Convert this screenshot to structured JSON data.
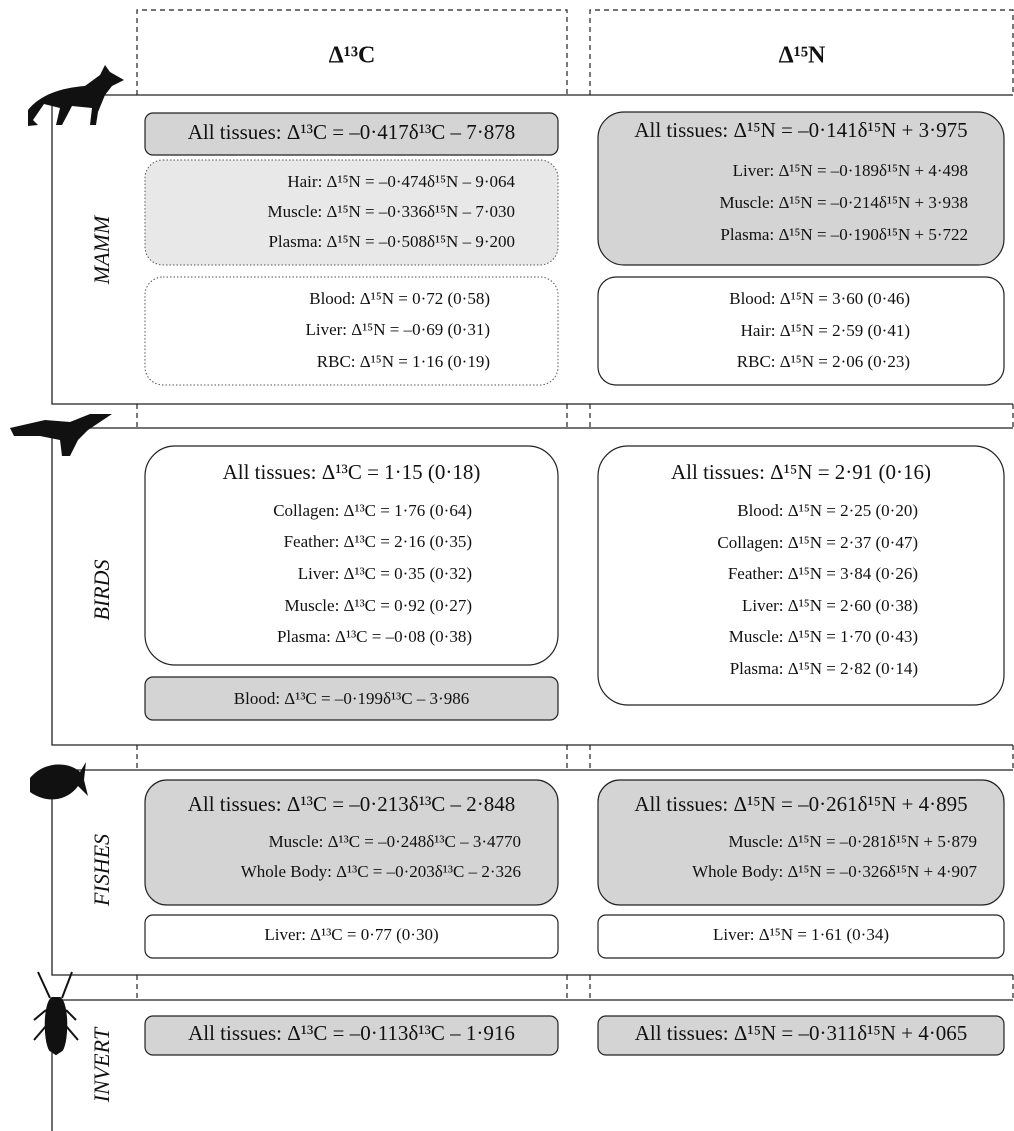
{
  "header": {
    "carbon": "Δ¹³C",
    "nitrogen": "Δ¹⁵N"
  },
  "groups": [
    {
      "label": "MAMM",
      "carbon": [
        {
          "lines": [
            "All tissues: Δ¹³C = –0·417δ¹³C – 7·878"
          ]
        },
        {
          "lines": [
            "Hair: Δ¹⁵N = –0·474δ¹⁵N – 9·064",
            "Muscle: Δ¹⁵N = –0·336δ¹⁵N – 7·030",
            "Plasma: Δ¹⁵N = –0·508δ¹⁵N – 9·200"
          ]
        },
        {
          "lines": [
            "Blood: Δ¹⁵N = 0·72 (0·58)",
            "Liver: Δ¹⁵N = –0·69 (0·31)",
            "RBC: Δ¹⁵N = 1·16 (0·19)"
          ]
        }
      ],
      "nitrogen": [
        {
          "lines": [
            "All tissues: Δ¹⁵N = –0·141δ¹⁵N + 3·975",
            "Liver: Δ¹⁵N = –0·189δ¹⁵N + 4·498",
            "Muscle: Δ¹⁵N = –0·214δ¹⁵N + 3·938",
            "Plasma: Δ¹⁵N = –0·190δ¹⁵N + 5·722"
          ]
        },
        {
          "lines": [
            "Blood: Δ¹⁵N = 3·60 (0·46)",
            "Hair: Δ¹⁵N = 2·59 (0·41)",
            "RBC: Δ¹⁵N = 2·06 (0·23)"
          ]
        }
      ]
    },
    {
      "label": "BIRDS",
      "carbon": [
        {
          "lines": [
            "All tissues: Δ¹³C = 1·15 (0·18)",
            "Collagen: Δ¹³C = 1·76 (0·64)",
            "Feather: Δ¹³C = 2·16 (0·35)",
            "Liver: Δ¹³C = 0·35 (0·32)",
            "Muscle: Δ¹³C = 0·92 (0·27)",
            "Plasma: Δ¹³C = –0·08 (0·38)"
          ]
        },
        {
          "lines": [
            "Blood: Δ¹³C = –0·199δ¹³C – 3·986"
          ]
        }
      ],
      "nitrogen": [
        {
          "lines": [
            "All tissues: Δ¹⁵N = 2·91 (0·16)",
            "Blood: Δ¹⁵N = 2·25 (0·20)",
            "Collagen: Δ¹⁵N = 2·37 (0·47)",
            "Feather: Δ¹⁵N = 3·84 (0·26)",
            "Liver: Δ¹⁵N = 2·60 (0·38)",
            "Muscle: Δ¹⁵N = 1·70 (0·43)",
            "Plasma: Δ¹⁵N = 2·82 (0·14)"
          ]
        }
      ]
    },
    {
      "label": "FISHES",
      "carbon": [
        {
          "lines": [
            "All tissues: Δ¹³C = –0·213δ¹³C – 2·848",
            "Muscle: Δ¹³C = –0·248δ¹³C – 3·4770",
            "Whole Body: Δ¹³C = –0·203δ¹³C – 2·326"
          ]
        },
        {
          "lines": [
            "Liver: Δ¹³C = 0·77 (0·30)"
          ]
        }
      ],
      "nitrogen": [
        {
          "lines": [
            "All tissues: Δ¹⁵N = –0·261δ¹⁵N + 4·895",
            "Muscle: Δ¹⁵N = –0·281δ¹⁵N + 5·879",
            "Whole Body: Δ¹⁵N = –0·326δ¹⁵N + 4·907"
          ]
        },
        {
          "lines": [
            "Liver: Δ¹⁵N = 1·61 (0·34)"
          ]
        }
      ]
    },
    {
      "label": "INVERT",
      "carbon": [
        {
          "lines": [
            "All tissues: Δ¹³C = –0·113δ¹³C – 1·916"
          ]
        }
      ],
      "nitrogen": [
        {
          "lines": [
            "All tissues: Δ¹⁵N = –0·311δ¹⁵N + 4·065"
          ]
        }
      ]
    }
  ]
}
